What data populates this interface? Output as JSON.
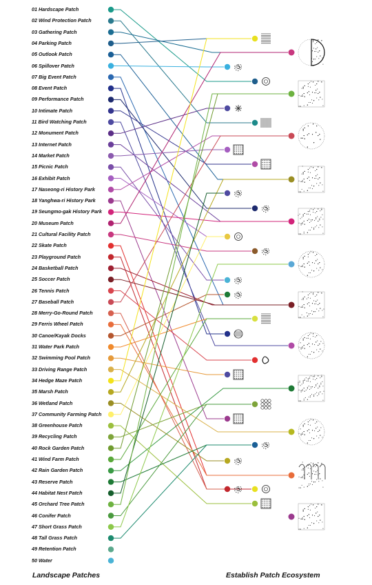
{
  "patches": [
    {
      "label": "01 Hardscape Patch",
      "color": "#1a9a8a"
    },
    {
      "label": "02 Wind Protection Patch",
      "color": "#2a7a8e"
    },
    {
      "label": "03 Gathering Patch",
      "color": "#1b6d92"
    },
    {
      "label": "04 Parking Patch",
      "color": "#1f5e8c"
    },
    {
      "label": "05 Outlook Patch",
      "color": "#1a5f96"
    },
    {
      "label": "06 Spillover Patch",
      "color": "#39b0df"
    },
    {
      "label": "07 Big Event Patch",
      "color": "#2a68b0"
    },
    {
      "label": "08 Event Patch",
      "color": "#22308a"
    },
    {
      "label": "09 Performance Patch",
      "color": "#1d2a6e"
    },
    {
      "label": "10 Intimate Patch",
      "color": "#33358e"
    },
    {
      "label": "11 Bird Watching Patch",
      "color": "#4e4aa0"
    },
    {
      "label": "12 Monument Patch",
      "color": "#5b2e87"
    },
    {
      "label": "13 Internet Patch",
      "color": "#6a3e9a"
    },
    {
      "label": "14 Market Patch",
      "color": "#8b5aae"
    },
    {
      "label": "15 Picnic Patch",
      "color": "#7a4ea8"
    },
    {
      "label": "16 Exhibit Patch",
      "color": "#a55ec0"
    },
    {
      "label": "17 Naseong-ri History Park",
      "color": "#b04ba6"
    },
    {
      "label": "18 Yanghwa-ri History Park",
      "color": "#9b3a8e"
    },
    {
      "label": "19 Seungmo-gak History Park",
      "color": "#d2247a"
    },
    {
      "label": "20 Museum Patch",
      "color": "#b02270"
    },
    {
      "label": "21 Cultural Facility Patch",
      "color": "#c8387f"
    },
    {
      "label": "22 Skate Patch",
      "color": "#e23030"
    },
    {
      "label": "23 Playground Patch",
      "color": "#c2272d"
    },
    {
      "label": "24 Basketball Patch",
      "color": "#9e2032"
    },
    {
      "label": "25 Soccer Patch",
      "color": "#7a1f26"
    },
    {
      "label": "26 Tennis Patch",
      "color": "#d8454e"
    },
    {
      "label": "27 Baseball Patch",
      "color": "#c94a56"
    },
    {
      "label": "28 Merry-Go-Round Patch",
      "color": "#d6604f"
    },
    {
      "label": "29 Ferris Wheel Patch",
      "color": "#e86d3b"
    },
    {
      "label": "30 Canoe/Kayak Docks",
      "color": "#b5562e"
    },
    {
      "label": "31 Water Park Patch",
      "color": "#f08a2c"
    },
    {
      "label": "32 Swimming Pool Patch",
      "color": "#e69a3a"
    },
    {
      "label": "33 Driving Range Patch",
      "color": "#d9b048"
    },
    {
      "label": "34 Hedge Maze Patch",
      "color": "#f3e21a"
    },
    {
      "label": "35 Marsh Patch",
      "color": "#b6a820"
    },
    {
      "label": "36 Wetland Patch",
      "color": "#9a8e23"
    },
    {
      "label": "37 Community Farming Patch",
      "color": "#fff06a"
    },
    {
      "label": "38 Greenhouse Patch",
      "color": "#9bbf3d"
    },
    {
      "label": "39 Recycling Patch",
      "color": "#7ea43a"
    },
    {
      "label": "40 Rock Garden Patch",
      "color": "#6f9b2f"
    },
    {
      "label": "41 Wind Farm Patch",
      "color": "#5aa83a"
    },
    {
      "label": "42 Rain Garden Patch",
      "color": "#3a9a45"
    },
    {
      "label": "43 Reserve Patch",
      "color": "#1e7a35"
    },
    {
      "label": "44 Habitat Nest Patch",
      "color": "#155e2c"
    },
    {
      "label": "45 Orchard Tree Patch",
      "color": "#6db240"
    },
    {
      "label": "46 Conifer Patch",
      "color": "#4a9a3e"
    },
    {
      "label": "47 Short Grass Patch",
      "color": "#8cc84a"
    },
    {
      "label": "48 Tall Grass Patch",
      "color": "#1c8a6e"
    },
    {
      "label": "49 Retention Patch",
      "color": "#5aa88c"
    },
    {
      "label": "50 Water",
      "color": "#4ab3d6"
    }
  ],
  "captions": {
    "left": "Landscape Patches",
    "right": "Establish Patch Ecosystem"
  },
  "small_nodes": [
    {
      "color": "#e8e020",
      "icon": "hlines"
    },
    {
      "color": "#39b0df",
      "icon": "dots"
    },
    {
      "color": "#1f5e8c",
      "icon": "ring"
    },
    {
      "color": "#4e4aa0",
      "icon": "star"
    },
    {
      "color": "#1c8a8a",
      "icon": "vlines"
    },
    {
      "color": "#a55ec0",
      "icon": "square"
    },
    {
      "color": "#b04ba6",
      "icon": "dense"
    },
    {
      "color": "#4e4aa0",
      "icon": "blob"
    },
    {
      "color": "#1d2a6e",
      "icon": "dotcircle"
    },
    {
      "color": "#e8c840",
      "icon": "ring"
    },
    {
      "color": "#8b5a2b",
      "icon": "blob"
    },
    {
      "color": "#4ab3d6",
      "icon": "dots"
    },
    {
      "color": "#1e7a35",
      "icon": "dots"
    },
    {
      "color": "#d8e040",
      "icon": "hlines"
    },
    {
      "color": "#22308a",
      "icon": "shell"
    },
    {
      "color": "#e23030",
      "icon": "bean"
    },
    {
      "color": "#4e4aa0",
      "icon": "square"
    },
    {
      "color": "#7ea43a",
      "icon": "circles"
    },
    {
      "color": "#9b3a8e",
      "icon": "maze"
    },
    {
      "color": "#1a5f96",
      "icon": "dotcircle"
    },
    {
      "color": "#b6a820",
      "icon": "dots"
    },
    {
      "color": "#e8e020",
      "icon": "ring"
    },
    {
      "color": "#c2272d",
      "icon": "dots"
    },
    {
      "color": "#9bbf3d",
      "icon": "grid"
    }
  ],
  "big_nodes": [
    {
      "color": "#c8387f",
      "icon": "half"
    },
    {
      "color": "#6db240",
      "icon": "square"
    },
    {
      "color": "#c94a56",
      "icon": "circle"
    },
    {
      "color": "#9a8e23",
      "icon": "square"
    },
    {
      "color": "#d2247a",
      "icon": "square"
    },
    {
      "color": "#5aa8d6",
      "icon": "circle"
    },
    {
      "color": "#7a1f26",
      "icon": "square"
    },
    {
      "color": "#b04ba6",
      "icon": "circle"
    },
    {
      "color": "#1e7a35",
      "icon": "square"
    },
    {
      "color": "#b6b820",
      "icon": "circle"
    },
    {
      "color": "#e86d3b",
      "icon": "trees"
    },
    {
      "color": "#9b3a8e",
      "icon": "square"
    }
  ]
}
